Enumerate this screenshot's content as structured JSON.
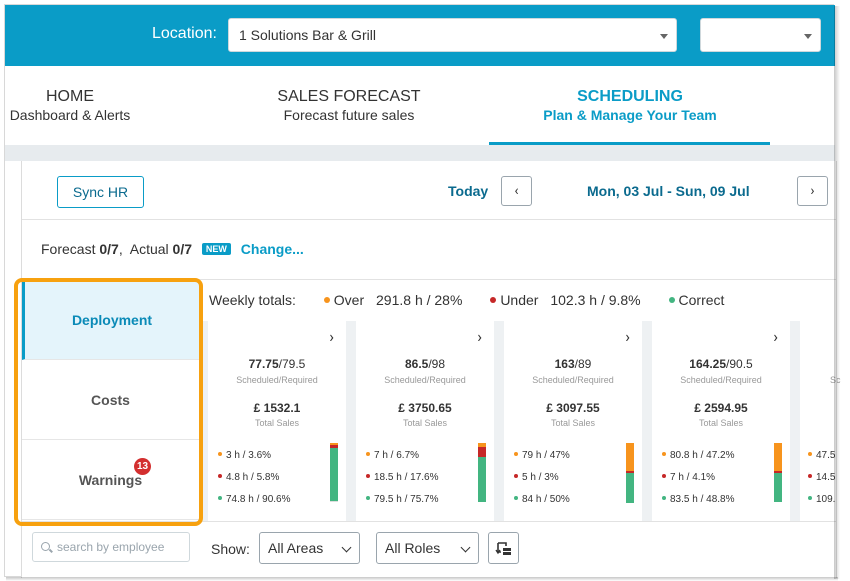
{
  "header": {
    "location_label": "Location:",
    "location_value": "1 Solutions Bar & Grill",
    "secondary_select_value": ""
  },
  "nav": {
    "home": {
      "title": "HOME",
      "subtitle": "Dashboard & Alerts"
    },
    "sales": {
      "title": "SALES FORECAST",
      "subtitle": "Forecast future sales"
    },
    "scheduling": {
      "title": "SCHEDULING",
      "subtitle": "Plan & Manage Your Team"
    }
  },
  "toolbar": {
    "sync_label": "Sync HR",
    "today_label": "Today",
    "prev_label": "‹",
    "next_label": "›",
    "date_range": "Mon, 03 Jul - Sun, 09 Jul"
  },
  "forecast": {
    "forecast_label": "Forecast",
    "forecast_value": "0/7",
    "actual_label": "Actual",
    "actual_value": "0/7",
    "new_badge": "NEW",
    "change_link": "Change..."
  },
  "sidetabs": {
    "deployment": "Deployment",
    "costs": "Costs",
    "warnings": "Warnings",
    "warnings_count": "13"
  },
  "weekly": {
    "label": "Weekly totals:",
    "over_label": "Over",
    "over_value": "291.8 h  /  28%",
    "under_label": "Under",
    "under_value": "102.3 h  /  9.8%",
    "correct_label": "Correct",
    "colors": {
      "over": "#f7941d",
      "under": "#c62828",
      "correct": "#43b581"
    }
  },
  "cards": [
    {
      "scheduled": "77.75",
      "required": "79.5",
      "caption1": "Scheduled/Required",
      "sales": "£ 1532.1",
      "caption2": "Total Sales",
      "over": "3 h  /  3.6%",
      "under": "4.8 h  /  5.8%",
      "correct": "74.8 h  /  90.6%",
      "bar": {
        "over": 0.036,
        "under": 0.058,
        "correct": 0.906
      }
    },
    {
      "scheduled": "86.5",
      "required": "98",
      "caption1": "Scheduled/Required",
      "sales": "£ 3750.65",
      "caption2": "Total Sales",
      "over": "7 h  /  6.7%",
      "under": "18.5 h  /  17.6%",
      "correct": "79.5 h  /  75.7%",
      "bar": {
        "over": 0.067,
        "under": 0.176,
        "correct": 0.757
      }
    },
    {
      "scheduled": "163",
      "required": "89",
      "caption1": "Scheduled/Required",
      "sales": "£ 3097.55",
      "caption2": "Total Sales",
      "over": "79 h  /  47%",
      "under": "5 h  /  3%",
      "correct": "84 h  /  50%",
      "bar": {
        "over": 0.47,
        "under": 0.03,
        "correct": 0.5
      }
    },
    {
      "scheduled": "164.25",
      "required": "90.5",
      "caption1": "Scheduled/Required",
      "sales": "£ 2594.95",
      "caption2": "Total Sales",
      "over": "80.8 h  /  47.2%",
      "under": "7 h  /  4.1%",
      "correct": "83.5 h  /  48.8%",
      "bar": {
        "over": 0.472,
        "under": 0.041,
        "correct": 0.488
      }
    },
    {
      "scheduled": "",
      "required": "",
      "caption1": "Sc",
      "sales": "",
      "caption2": "",
      "over": "47.5",
      "under": "14.5",
      "correct": "109.",
      "bar": null
    }
  ],
  "filters": {
    "search_placeholder": "search by employee",
    "show_label": "Show:",
    "areas_value": "All Areas",
    "roles_value": "All Roles"
  }
}
